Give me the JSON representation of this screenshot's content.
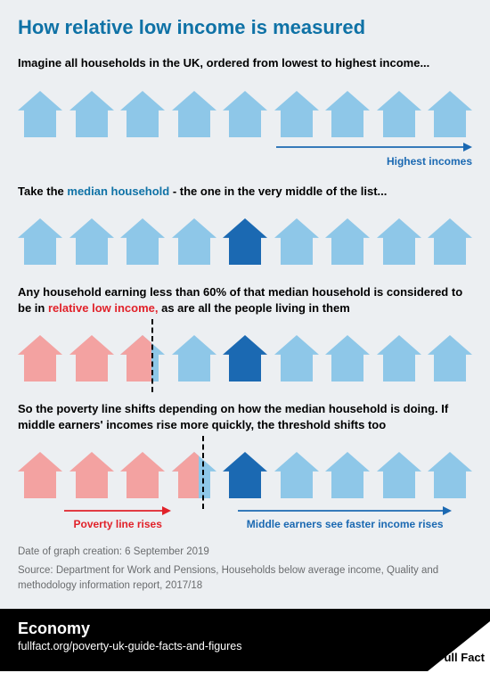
{
  "title": "How relative low income is measured",
  "title_color": "#0f72a6",
  "colors": {
    "light_blue": "#8ec7e8",
    "dark_blue": "#1b69b2",
    "pink": "#f3a2a1",
    "arrow_red": "#e1222a",
    "arrow_blue": "#1b69b2",
    "teal_accent": "#0f72a6"
  },
  "sections": {
    "s1": {
      "text": "Imagine all households in the UK, ordered from lowest to highest income...",
      "arrow_label": "Highest incomes",
      "house_count": 9
    },
    "s2": {
      "pre": "Take the ",
      "highlight": "median household",
      "post": " - the one in the very middle of the list...",
      "house_count": 9,
      "median_index": 4
    },
    "s3": {
      "pre": "Any household earning less than 60% of that median household is considered to be in ",
      "highlight": "relative low income,",
      "post": " as are all the people living in them",
      "house_count": 9,
      "pink_fractions": [
        1,
        1,
        0.7,
        0,
        0,
        0,
        0,
        0,
        0
      ],
      "median_index": 4,
      "dashed_left_pct": 29.5
    },
    "s4": {
      "text": "So the poverty line shifts depending on how the median household is doing. If middle earners' incomes rise more quickly, the threshold shifts too",
      "house_count": 9,
      "pink_fractions": [
        1,
        1,
        1,
        0.6,
        0,
        0,
        0,
        0,
        0
      ],
      "median_index": 4,
      "dashed_left_pct": 40.5,
      "left_label": "Poverty line rises",
      "right_label": "Middle earners see faster income rises",
      "left_col_width_pct": 44,
      "right_col_width_pct": 56
    }
  },
  "footer": {
    "date": "Date of graph creation: 6 September 2019",
    "source": "Source: Department for Work and Pensions, Households below average income, Quality and methodology information report, 2017/18",
    "category": "Economy",
    "url": "fullfact.org/poverty-uk-guide-facts-and-figures",
    "brand": "Full Fact"
  }
}
